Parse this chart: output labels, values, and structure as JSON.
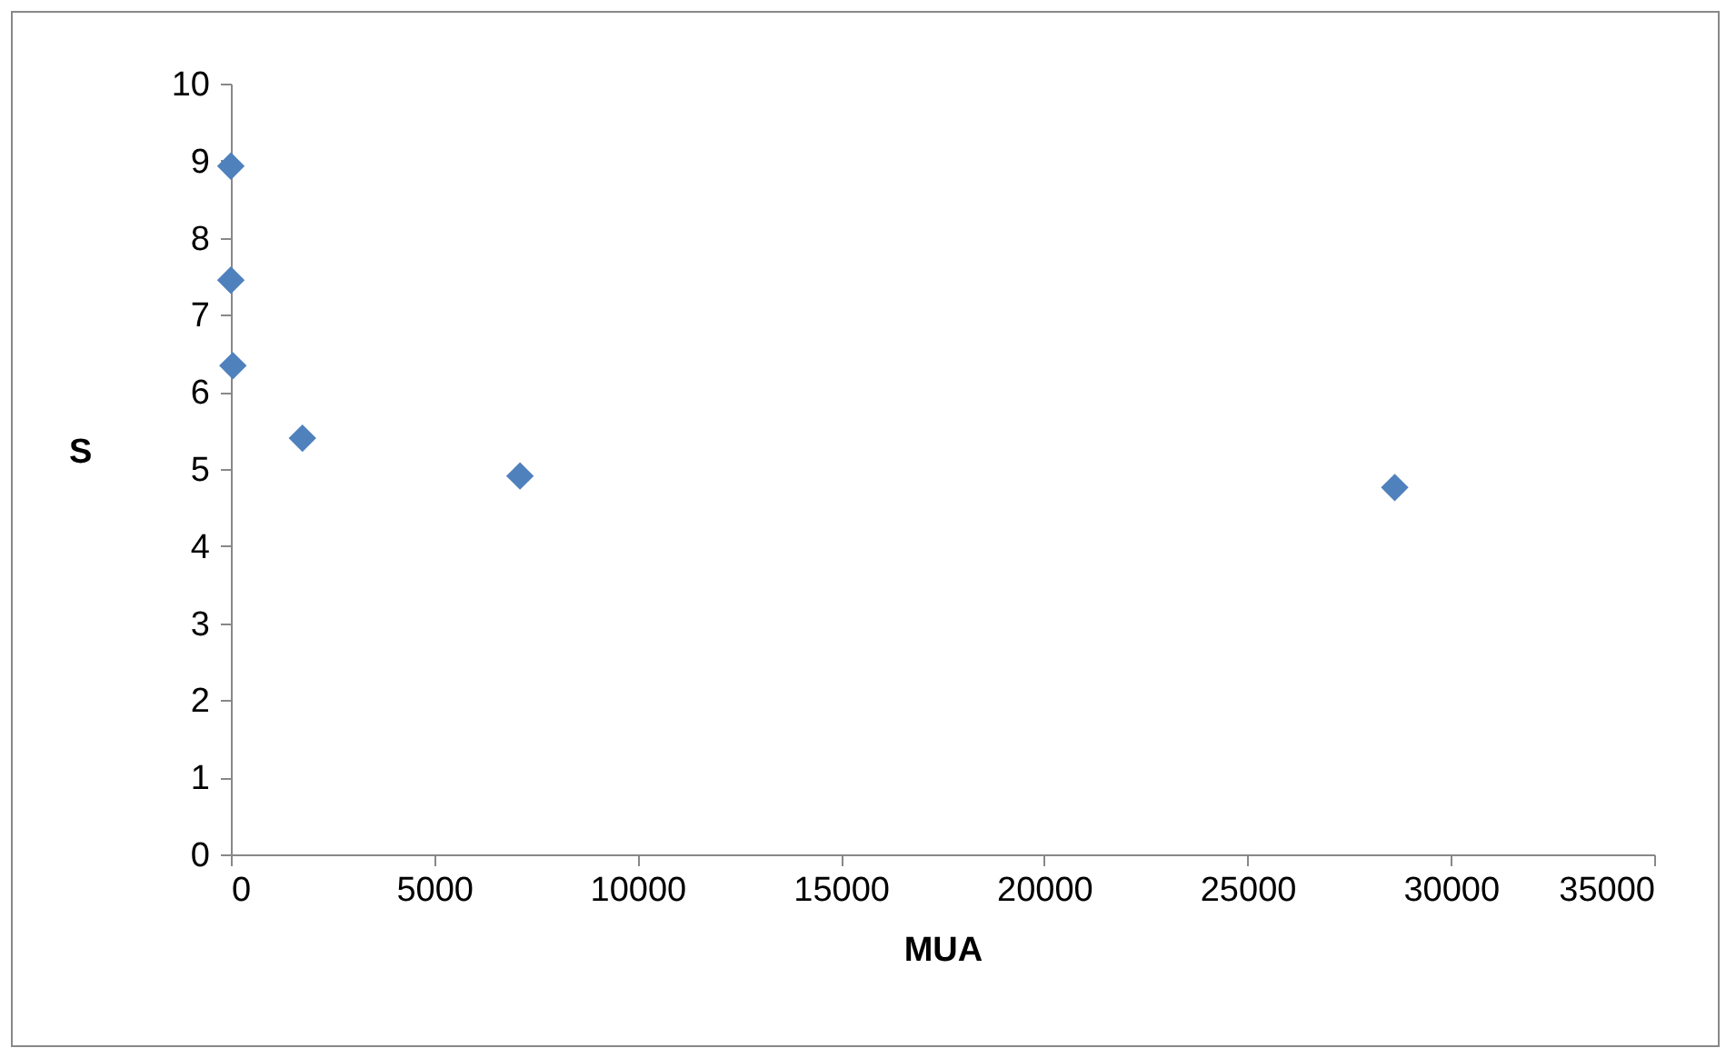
{
  "chart_data": {
    "type": "scatter",
    "xlabel": "MUA",
    "ylabel": "S",
    "x": [
      0,
      0,
      50,
      1760,
      7110,
      28620
    ],
    "series": [
      {
        "color": "#4f81bd",
        "values": [
          8.93,
          7.45,
          6.34,
          5.4,
          4.91,
          4.76
        ]
      }
    ],
    "xlim": [
      0,
      35000
    ],
    "xticks": [
      0,
      5000,
      10000,
      15000,
      20000,
      25000,
      30000,
      35000
    ],
    "ylim": [
      0,
      10
    ],
    "yticks": [
      0,
      1,
      2,
      3,
      4,
      5,
      6,
      7,
      8,
      9,
      10
    ],
    "marker": "diamond",
    "grid": false,
    "legend": false
  }
}
